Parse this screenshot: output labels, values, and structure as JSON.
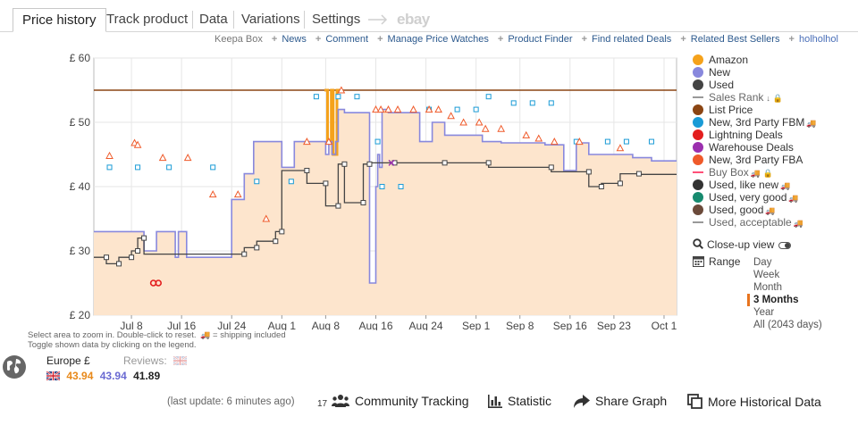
{
  "tabs": [
    {
      "label": "Price history",
      "active": true
    },
    {
      "label": "Track product"
    },
    {
      "label": "Data"
    },
    {
      "label": "Variations"
    },
    {
      "label": "Settings"
    }
  ],
  "ebay_label": "ebay",
  "links": {
    "brand": "Keepa Box",
    "items": [
      "News",
      "Comment",
      "Manage Price Watches",
      "Product Finder",
      "Find related Deals",
      "Related Best Sellers"
    ],
    "user": "holholhol"
  },
  "legend": [
    {
      "label": "Amazon",
      "color": "#f5a21b",
      "style": "dot"
    },
    {
      "label": "New",
      "color": "#8888dd",
      "style": "dot"
    },
    {
      "label": "Used",
      "color": "#444444",
      "style": "dot"
    },
    {
      "label": "Sales Rank",
      "color": "#999999",
      "style": "dash",
      "dim": true,
      "icons": "sort lock"
    },
    {
      "label": "List Price",
      "color": "#8b4513",
      "style": "dot"
    },
    {
      "label": "New, 3rd Party FBM",
      "color": "#1a9bd6",
      "style": "dot",
      "truck": true
    },
    {
      "label": "Lightning Deals",
      "color": "#e31e1e",
      "style": "dot"
    },
    {
      "label": "Warehouse Deals",
      "color": "#9b2fae",
      "style": "dot"
    },
    {
      "label": "New, 3rd Party FBA",
      "color": "#ef5a2a",
      "style": "dot"
    },
    {
      "label": "Buy Box",
      "color": "#ff4f78",
      "style": "dash",
      "dim": true,
      "truck": true,
      "icons": "lock"
    },
    {
      "label": "Used, like new",
      "color": "#333333",
      "style": "dot",
      "truck": true
    },
    {
      "label": "Used, very good",
      "color": "#168a6e",
      "style": "dot",
      "truck": true
    },
    {
      "label": "Used, good",
      "color": "#6b4a3a",
      "style": "dot",
      "truck": true
    },
    {
      "label": "Used, acceptable",
      "color": "#999999",
      "style": "dash",
      "dim": true,
      "truck": true
    }
  ],
  "closeup": {
    "label": "Close-up view"
  },
  "range": {
    "label": "Range",
    "options": [
      "Day",
      "Week",
      "Month",
      "3 Months",
      "Year",
      "All (2043 days)"
    ],
    "selected": "3 Months"
  },
  "notes": [
    "Select area to zoom in. Double-click to reset.",
    "= shipping included",
    "Toggle shown data by clicking on the legend."
  ],
  "region": {
    "label": "Europe £",
    "reviews_label": "Reviews:"
  },
  "current_prices": [
    {
      "value": "43.94",
      "color": "#e8891a"
    },
    {
      "value": "43.94",
      "color": "#6a6ad2"
    },
    {
      "value": "41.89",
      "color": "#222222"
    }
  ],
  "footer": {
    "updated": "(last update: 6 minutes ago)",
    "tracking_count": "17",
    "community": "Community Tracking",
    "statistic": "Statistic",
    "share": "Share Graph",
    "more": "More Historical Data"
  },
  "chart_data": {
    "type": "line",
    "currency": "£",
    "y_ticks": [
      "£ 60",
      "£ 50",
      "£ 40",
      "£ 30",
      "£ 20"
    ],
    "ylim": [
      20,
      60
    ],
    "x_ticks": [
      "Jul 8",
      "Jul 16",
      "Jul 24",
      "Aug 1",
      "Aug 8",
      "Aug 16",
      "Aug 24",
      "Sep 1",
      "Sep 8",
      "Sep 16",
      "Sep 23",
      "Oct 1"
    ],
    "x_tick_day": [
      6,
      14,
      22,
      30,
      37,
      45,
      53,
      61,
      68,
      76,
      83,
      91
    ],
    "xlim": [
      0,
      93
    ],
    "list_price": 55,
    "series": [
      {
        "name": "Amazon",
        "color": "#f5a21b",
        "x": [
          36.8,
          37.3,
          37.3,
          37.9,
          37.9,
          38.2,
          38.2,
          38.8,
          38.8,
          39.3
        ],
        "y": [
          55,
          55,
          47,
          47,
          55,
          55,
          45,
          45,
          55,
          55
        ]
      },
      {
        "name": "New",
        "color": "#8888dd",
        "x": [
          0,
          8,
          8,
          10,
          10,
          13,
          13,
          13.5,
          13.5,
          14.8,
          14.8,
          22,
          22,
          24,
          24,
          25.5,
          25.5,
          30,
          30,
          32,
          32,
          37,
          37,
          37.5,
          37.5,
          38,
          38,
          38.6,
          38.6,
          39,
          39,
          40,
          40,
          44,
          44,
          45,
          45,
          45.3,
          45.3,
          45.6,
          45.6,
          46,
          46,
          47,
          47,
          52,
          52,
          54,
          54,
          56,
          56,
          62,
          62,
          65,
          65,
          72,
          72,
          75,
          75,
          77,
          77,
          79,
          79,
          86,
          86,
          89,
          89,
          93
        ],
        "y": [
          33,
          33,
          30,
          30,
          33,
          33,
          29,
          29,
          33,
          33,
          29,
          29,
          38,
          38,
          42,
          42,
          47,
          47,
          43,
          43,
          47,
          47,
          45,
          45,
          47,
          47,
          45,
          45,
          47,
          47,
          52,
          52,
          51.5,
          51.5,
          25,
          25,
          40,
          40,
          45,
          45,
          43,
          43,
          52,
          52,
          51.5,
          51.5,
          47,
          47,
          50,
          50,
          48,
          48,
          47,
          47,
          46.8,
          46.8,
          46.5,
          46.5,
          42.5,
          42.5,
          46.8,
          46.8,
          45,
          45,
          44.5,
          44.5,
          44,
          44
        ]
      },
      {
        "name": "Used",
        "color": "#444444",
        "x": [
          0,
          2,
          2,
          4,
          4,
          6,
          6,
          7,
          7,
          8,
          8,
          24,
          24,
          26,
          26,
          29,
          29,
          30,
          30,
          34,
          34,
          37,
          37,
          39,
          39,
          40,
          40,
          43,
          43,
          44,
          44,
          48,
          48,
          56,
          56,
          63,
          63,
          73,
          73,
          79,
          79,
          81,
          81,
          84,
          84,
          87,
          87,
          93
        ],
        "y": [
          29,
          29,
          28,
          28,
          29,
          29,
          30,
          30,
          32,
          32,
          29.5,
          29.5,
          30.5,
          30.5,
          31.5,
          31.5,
          33,
          33,
          42.5,
          42.5,
          40.5,
          40.5,
          37,
          37,
          43.5,
          43.5,
          37.5,
          37.5,
          43.5,
          43.5,
          43.7,
          43.7,
          43.7,
          43.7,
          43.7,
          43.7,
          43,
          43,
          42.3,
          42.3,
          40,
          40,
          40.5,
          40.5,
          42,
          42,
          41.9,
          41.9
        ]
      },
      {
        "name": "New, 3rd Party FBM",
        "color": "#1a9bd6",
        "x": [
          2.5,
          7,
          12,
          19,
          26,
          31.5,
          35.5,
          39,
          42,
          45.3,
          46,
          49,
          53.5,
          58,
          61,
          63,
          67,
          70,
          73,
          77,
          82,
          85,
          89
        ],
        "y": [
          43,
          43,
          43,
          43,
          40.8,
          40.8,
          54,
          54,
          54,
          47,
          40,
          40,
          52,
          52,
          52,
          54,
          53,
          53,
          53,
          47,
          47,
          47,
          47
        ]
      },
      {
        "name": "New, 3rd Party FBA",
        "color": "#ef5a2a",
        "x": [
          2.5,
          6.5,
          7,
          11,
          15,
          19,
          23,
          27.5,
          34,
          37.5,
          39.5,
          45,
          45.8,
          47,
          48.5,
          51,
          53.5,
          55,
          57,
          59,
          61.5,
          62.5,
          65,
          69,
          71,
          73.5,
          77.5,
          84
        ],
        "y": [
          44.8,
          46.8,
          46.5,
          44.5,
          44.5,
          38.8,
          38.8,
          35,
          47,
          47,
          55,
          52,
          52,
          52,
          52,
          52,
          52,
          52,
          51,
          50,
          50,
          49,
          49,
          48,
          47.5,
          47,
          47,
          46
        ]
      },
      {
        "name": "Lightning Deals",
        "color": "#e31e1e",
        "x": [
          9.5,
          10.3
        ],
        "y": [
          25,
          25
        ]
      },
      {
        "name": "Warehouse Deals",
        "color": "#9b2fae",
        "x": [
          47.5
        ],
        "y": [
          43.7
        ]
      }
    ]
  }
}
